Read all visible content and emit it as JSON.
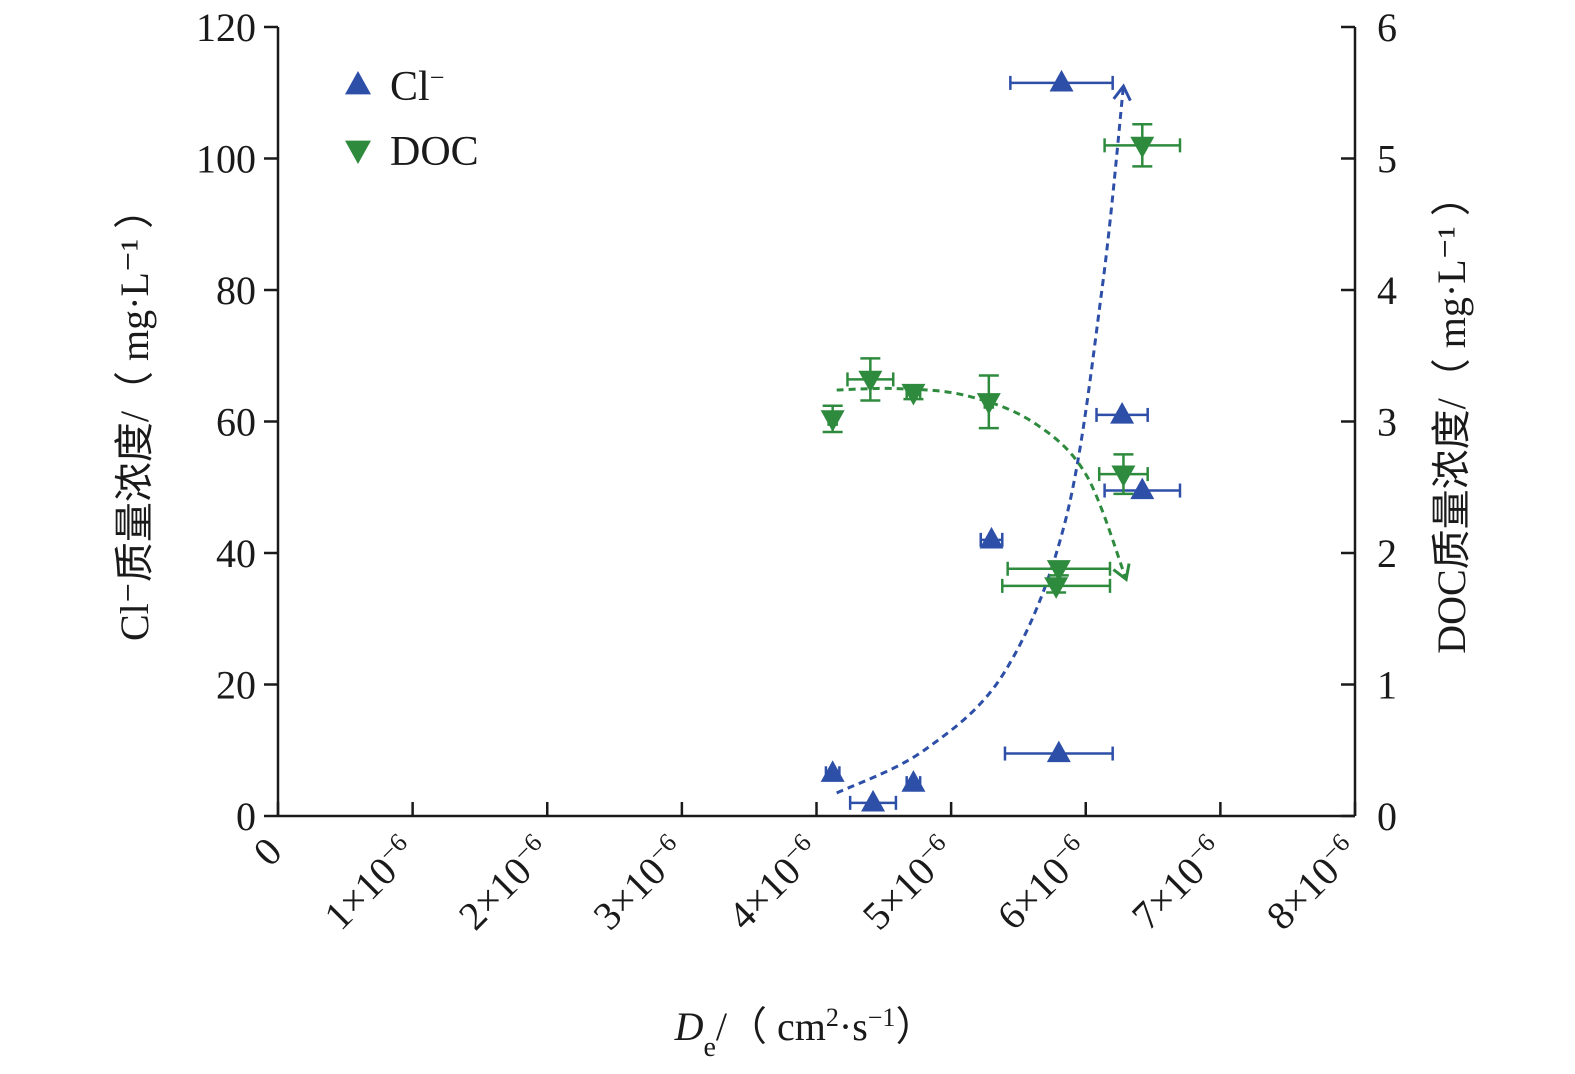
{
  "chart_data": {
    "type": "scatter",
    "x_axis": {
      "label_parts": [
        "D",
        "e",
        "/（ cm",
        "2",
        "·s",
        "−1",
        "）"
      ],
      "range": [
        0,
        8e-06
      ],
      "ticks": [
        0,
        1e-06,
        2e-06,
        3e-06,
        4e-06,
        5e-06,
        6e-06,
        7e-06,
        8e-06
      ],
      "tick_labels": [
        [
          "0",
          ""
        ],
        [
          "1×10",
          "−6"
        ],
        [
          "2×10",
          "−6"
        ],
        [
          "3×10",
          "−6"
        ],
        [
          "4×10",
          "−6"
        ],
        [
          "5×10",
          "−6"
        ],
        [
          "6×10",
          "−6"
        ],
        [
          "7×10",
          "−6"
        ],
        [
          "8×10",
          "−6"
        ]
      ]
    },
    "y_axis_left": {
      "label": "Cl⁻质量浓度/（ mg·L⁻¹ ）",
      "range": [
        0,
        120
      ],
      "ticks": [
        0,
        20,
        40,
        60,
        80,
        100,
        120
      ],
      "tick_labels": [
        "0",
        "20",
        "40",
        "60",
        "80",
        "100",
        "120"
      ]
    },
    "y_axis_right": {
      "label": "DOC质量浓度/（ mg·L⁻¹ ）",
      "range": [
        0,
        6
      ],
      "ticks": [
        0,
        1,
        2,
        3,
        4,
        5,
        6
      ],
      "tick_labels": [
        "0",
        "1",
        "2",
        "3",
        "4",
        "5",
        "6"
      ]
    },
    "legend_position": "top-left",
    "series": [
      {
        "name": "Cl⁻",
        "axis": "left",
        "marker": "triangle-up",
        "color": "#2e4fa8",
        "points": [
          {
            "x": 4.12e-06,
            "y": 6.5,
            "xerr": 5e-08
          },
          {
            "x": 4.42e-06,
            "y": 2,
            "xerr": 1.7e-07
          },
          {
            "x": 4.72e-06,
            "y": 5,
            "xerr": 5e-08
          },
          {
            "x": 5.3e-06,
            "y": 42,
            "xerr": 8e-08
          },
          {
            "x": 5.8e-06,
            "y": 9.5,
            "xerr": 4e-07
          },
          {
            "x": 5.82e-06,
            "y": 111.5,
            "xerr": 3.8e-07
          },
          {
            "x": 6.27e-06,
            "y": 61,
            "xerr": 1.9e-07
          },
          {
            "x": 6.42e-06,
            "y": 49.5,
            "xerr": 2.8e-07
          }
        ],
        "trend": [
          [
            4.15e-06,
            3.5
          ],
          [
            4.8e-06,
            10
          ],
          [
            5.4e-06,
            22
          ],
          [
            5.85e-06,
            45
          ],
          [
            6.12e-06,
            80
          ],
          [
            6.28e-06,
            111
          ]
        ]
      },
      {
        "name": "DOC",
        "axis": "right",
        "marker": "triangle-down",
        "color": "#2e8b3e",
        "points": [
          {
            "x": 4.12e-06,
            "y": 3.02,
            "yerr": 0.1,
            "xerr": 3e-08
          },
          {
            "x": 4.4e-06,
            "y": 3.32,
            "yerr": 0.16,
            "xerr": 1.7e-07
          },
          {
            "x": 4.72e-06,
            "y": 3.22,
            "yerr": 0.05,
            "xerr": 5e-08
          },
          {
            "x": 5.28e-06,
            "y": 3.15,
            "yerr": 0.2,
            "xerr": 3e-08
          },
          {
            "x": 5.8e-06,
            "y": 1.88,
            "yerr": 0.05,
            "xerr": 3.8e-07
          },
          {
            "x": 5.78e-06,
            "y": 1.75,
            "yerr": 0.05,
            "xerr": 4e-07
          },
          {
            "x": 6.28e-06,
            "y": 2.6,
            "yerr": 0.15,
            "xerr": 1.8e-07
          },
          {
            "x": 6.42e-06,
            "y": 5.1,
            "yerr": 0.16,
            "xerr": 2.8e-07
          }
        ],
        "trend": [
          [
            4.15e-06,
            3.24
          ],
          [
            4.6e-06,
            3.25
          ],
          [
            5.1e-06,
            3.2
          ],
          [
            5.6e-06,
            3.0
          ],
          [
            6e-06,
            2.6
          ],
          [
            6.3e-06,
            1.8
          ]
        ]
      }
    ]
  }
}
